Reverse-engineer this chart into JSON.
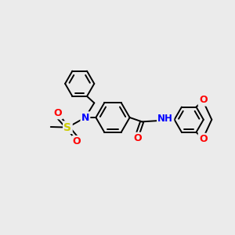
{
  "background_color": "#ebebeb",
  "bond_color": "#000000",
  "figsize": [
    3.0,
    3.0
  ],
  "dpi": 100,
  "atom_colors": {
    "N": "#0000ff",
    "O": "#ff0000",
    "S": "#cccc00",
    "H": "#008080",
    "C": "#000000"
  },
  "lw": 1.4,
  "fontsize": 8.5
}
